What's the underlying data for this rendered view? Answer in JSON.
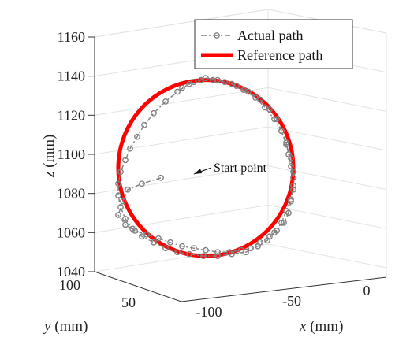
{
  "chart_data": {
    "type": "line",
    "projection": "3d",
    "title": "",
    "xlabel_var": "x",
    "xlabel_unit": " (mm)",
    "ylabel_var": "y",
    "ylabel_unit": " (mm)",
    "zlabel_var": "z",
    "zlabel_unit": " (mm)",
    "x_ticks": [
      "-100",
      "-50",
      "0"
    ],
    "y_ticks": [
      "100",
      "50"
    ],
    "z_ticks": [
      "1160",
      "1140",
      "1120",
      "1100",
      "1080",
      "1060",
      "1040"
    ],
    "xlim": [
      -110,
      10
    ],
    "ylim": [
      30,
      100
    ],
    "zlim": [
      1040,
      1160
    ],
    "grid": true,
    "legend_position": "top-right",
    "annotation": "Start point",
    "series": [
      {
        "name": "Actual path",
        "color": "#808080",
        "style": "dash-dot with circle markers",
        "points": [
          [
            -82,
            1088
          ],
          [
            -90,
            1085
          ],
          [
            -96,
            1082
          ],
          [
            -98,
            1076
          ],
          [
            -100,
            1069
          ],
          [
            -97,
            1064
          ],
          [
            -93,
            1061
          ],
          [
            -88,
            1059
          ],
          [
            -83,
            1057
          ],
          [
            -78,
            1055
          ],
          [
            -73,
            1053
          ],
          [
            -68,
            1052
          ],
          [
            -63,
            1051
          ],
          [
            -58,
            1050
          ],
          [
            -53,
            1050
          ],
          [
            -48,
            1051
          ],
          [
            -44,
            1052
          ],
          [
            -40,
            1055
          ],
          [
            -36,
            1058
          ],
          [
            -33,
            1061
          ],
          [
            -30,
            1065
          ],
          [
            -28,
            1070
          ],
          [
            -27,
            1076
          ],
          [
            -26,
            1082
          ],
          [
            -26,
            1088
          ],
          [
            -27,
            1094
          ],
          [
            -28,
            1100
          ],
          [
            -29,
            1106
          ],
          [
            -31,
            1112
          ],
          [
            -33,
            1118
          ],
          [
            -36,
            1123
          ],
          [
            -40,
            1128
          ],
          [
            -45,
            1132
          ],
          [
            -50,
            1135
          ],
          [
            -55,
            1137
          ],
          [
            -60,
            1138
          ],
          [
            -65,
            1138
          ],
          [
            -70,
            1136
          ],
          [
            -75,
            1132
          ],
          [
            -80,
            1127
          ],
          [
            -85,
            1121
          ],
          [
            -89,
            1115
          ],
          [
            -92,
            1109
          ],
          [
            -95,
            1103
          ],
          [
            -97,
            1097
          ],
          [
            -99,
            1091
          ],
          [
            -100,
            1085
          ],
          [
            -100,
            1079
          ],
          [
            -99,
            1073
          ],
          [
            -97,
            1067
          ],
          [
            -94,
            1062
          ],
          [
            -90,
            1058
          ],
          [
            -85,
            1055
          ],
          [
            -80,
            1052
          ],
          [
            -75,
            1050
          ],
          [
            -70,
            1049
          ],
          [
            -64,
            1048
          ],
          [
            -58,
            1048
          ],
          [
            -52,
            1049
          ],
          [
            -46,
            1050
          ],
          [
            -41,
            1053
          ],
          [
            -37,
            1056
          ],
          [
            -34,
            1060
          ],
          [
            -31,
            1065
          ],
          [
            -29,
            1071
          ],
          [
            -27,
            1077
          ],
          [
            -26,
            1084
          ],
          [
            -26,
            1091
          ],
          [
            -27,
            1098
          ],
          [
            -29,
            1105
          ],
          [
            -31,
            1112
          ],
          [
            -34,
            1118
          ],
          [
            -38,
            1124
          ],
          [
            -42,
            1129
          ],
          [
            -47,
            1133
          ],
          [
            -52,
            1136
          ],
          [
            -58,
            1138
          ],
          [
            -63,
            1139
          ],
          [
            -68,
            1137
          ],
          [
            -73,
            1134
          ]
        ]
      },
      {
        "name": "Reference path",
        "color": "#ff0000",
        "style": "solid thick",
        "center": [
          -63,
          1093
        ],
        "radius_x": 37,
        "radius_z": 45
      }
    ]
  }
}
